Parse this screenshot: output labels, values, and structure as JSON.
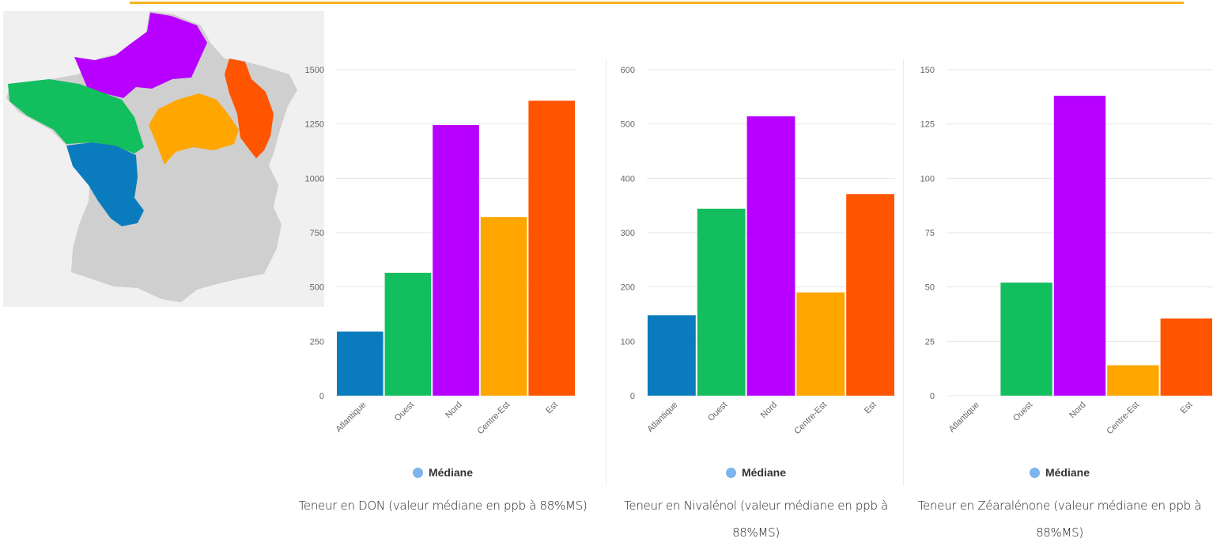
{
  "colors": {
    "accent_rule": "#f6b31e",
    "legend_dot": "#7cb5ec",
    "Atlantique": "#0a7bbd",
    "Ouest": "#13be5e",
    "Nord": "#b700ff",
    "Centre-Est": "#ffa600",
    "Est": "#ff5400",
    "land": "#cfcfcf"
  },
  "map": {
    "regions": [
      {
        "name": "Nord",
        "color": "#b700ff"
      },
      {
        "name": "Ouest",
        "color": "#13be5e"
      },
      {
        "name": "Atlantique",
        "color": "#0a7bbd"
      },
      {
        "name": "Centre-Est",
        "color": "#ffa600"
      },
      {
        "name": "Est",
        "color": "#ff5400"
      }
    ]
  },
  "chart_data": [
    {
      "type": "bar",
      "categories": [
        "Atlantique",
        "Ouest",
        "Nord",
        "Centre-Est",
        "Est"
      ],
      "series": [
        {
          "name": "Médiane",
          "values": [
            295,
            565,
            1245,
            822,
            1357
          ]
        }
      ],
      "yticks": [
        0,
        250,
        500,
        750,
        1000,
        1250,
        1500
      ],
      "ylim": [
        0,
        1500
      ],
      "legend": "Médiane",
      "caption": "Teneur en DON (valeur médiane en ppb à 88%MS)",
      "grid": true
    },
    {
      "type": "bar",
      "categories": [
        "Atlantique",
        "Ouest",
        "Nord",
        "Centre-Est",
        "Est"
      ],
      "series": [
        {
          "name": "Médiane",
          "values": [
            148,
            344,
            514,
            190,
            371
          ]
        }
      ],
      "yticks": [
        0,
        100,
        200,
        300,
        400,
        500,
        600
      ],
      "ylim": [
        0,
        600
      ],
      "legend": "Médiane",
      "caption": "Teneur en Nivalénol (valeur médiane en ppb à 88%MS)",
      "grid": true
    },
    {
      "type": "bar",
      "categories": [
        "Atlantique",
        "Ouest",
        "Nord",
        "Centre-Est",
        "Est"
      ],
      "series": [
        {
          "name": "Médiane",
          "values": [
            0,
            52,
            138,
            14,
            35.5
          ]
        }
      ],
      "yticks": [
        0,
        25,
        50,
        75,
        100,
        125,
        150
      ],
      "ylim": [
        0,
        150
      ],
      "legend": "Médiane",
      "caption": "Teneur en Zéaralénone (valeur médiane en ppb à 88%MS)",
      "grid": true
    }
  ]
}
